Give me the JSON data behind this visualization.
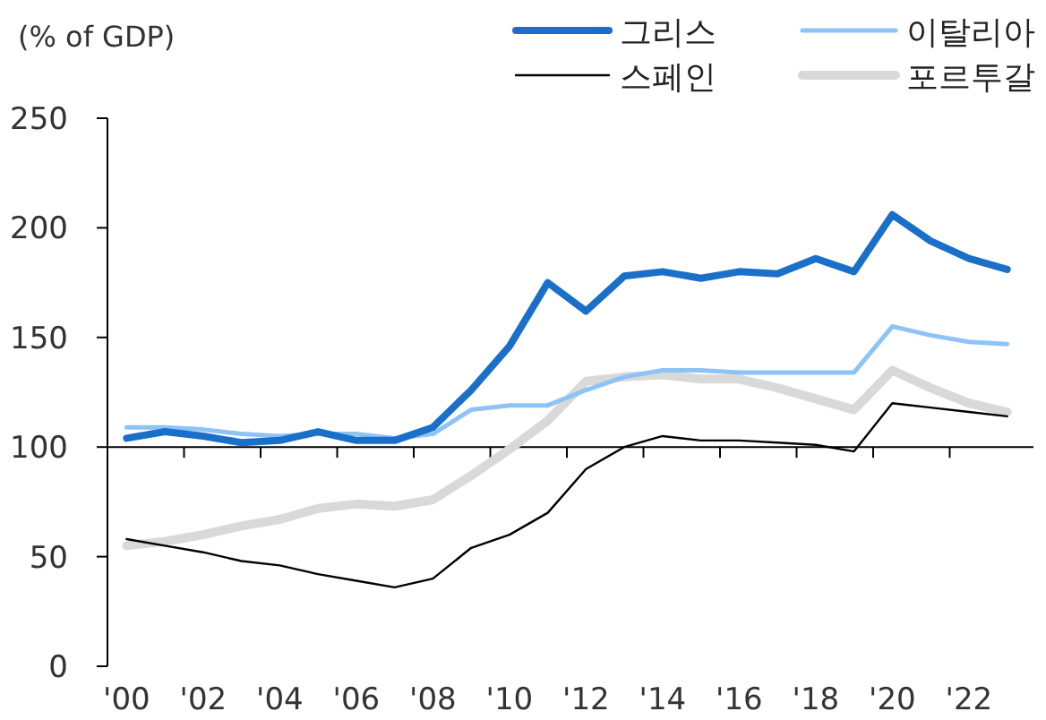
{
  "chart_data": {
    "type": "line",
    "ylabel": "(% of GDP)",
    "categories": [
      "'00",
      null,
      "'02",
      null,
      "'04",
      null,
      "'06",
      null,
      "'08",
      null,
      "'10",
      null,
      "'12",
      null,
      "'14",
      null,
      "'16",
      null,
      "'18",
      null,
      "'20",
      null,
      "'22",
      null
    ],
    "series": [
      {
        "name": "그리스",
        "color": "#1a6fc8",
        "values": [
          104,
          107,
          105,
          102,
          103,
          107,
          103,
          103,
          109,
          126,
          146,
          175,
          162,
          178,
          180,
          177,
          180,
          179,
          186,
          180,
          206,
          194,
          186,
          181
        ]
      },
      {
        "name": "이탈리아",
        "color": "#8dc3f5",
        "values": [
          109,
          109,
          108,
          106,
          105,
          106,
          106,
          104,
          106,
          117,
          119,
          119,
          126,
          132,
          135,
          135,
          134,
          134,
          134,
          134,
          155,
          151,
          148,
          147
        ]
      },
      {
        "name": "스페인",
        "color": "#000000",
        "values": [
          58,
          55,
          52,
          48,
          46,
          42,
          39,
          36,
          40,
          54,
          60,
          70,
          90,
          100,
          105,
          103,
          103,
          102,
          101,
          98,
          120,
          118,
          116,
          114
        ]
      },
      {
        "name": "포르투갈",
        "color": "#d9d9d9",
        "values": [
          55,
          57,
          60,
          64,
          67,
          72,
          74,
          73,
          76,
          87,
          99,
          112,
          130,
          132,
          133,
          131,
          131,
          127,
          122,
          117,
          135,
          127,
          120,
          116
        ]
      }
    ],
    "ylim": [
      0,
      250
    ],
    "yticks": [
      0,
      50,
      100,
      150,
      200,
      250
    ],
    "ref_lines": [
      {
        "axis": "y",
        "value": 100
      }
    ],
    "legend": "top right",
    "grid": false,
    "marker": "none",
    "line_style": "solid"
  }
}
